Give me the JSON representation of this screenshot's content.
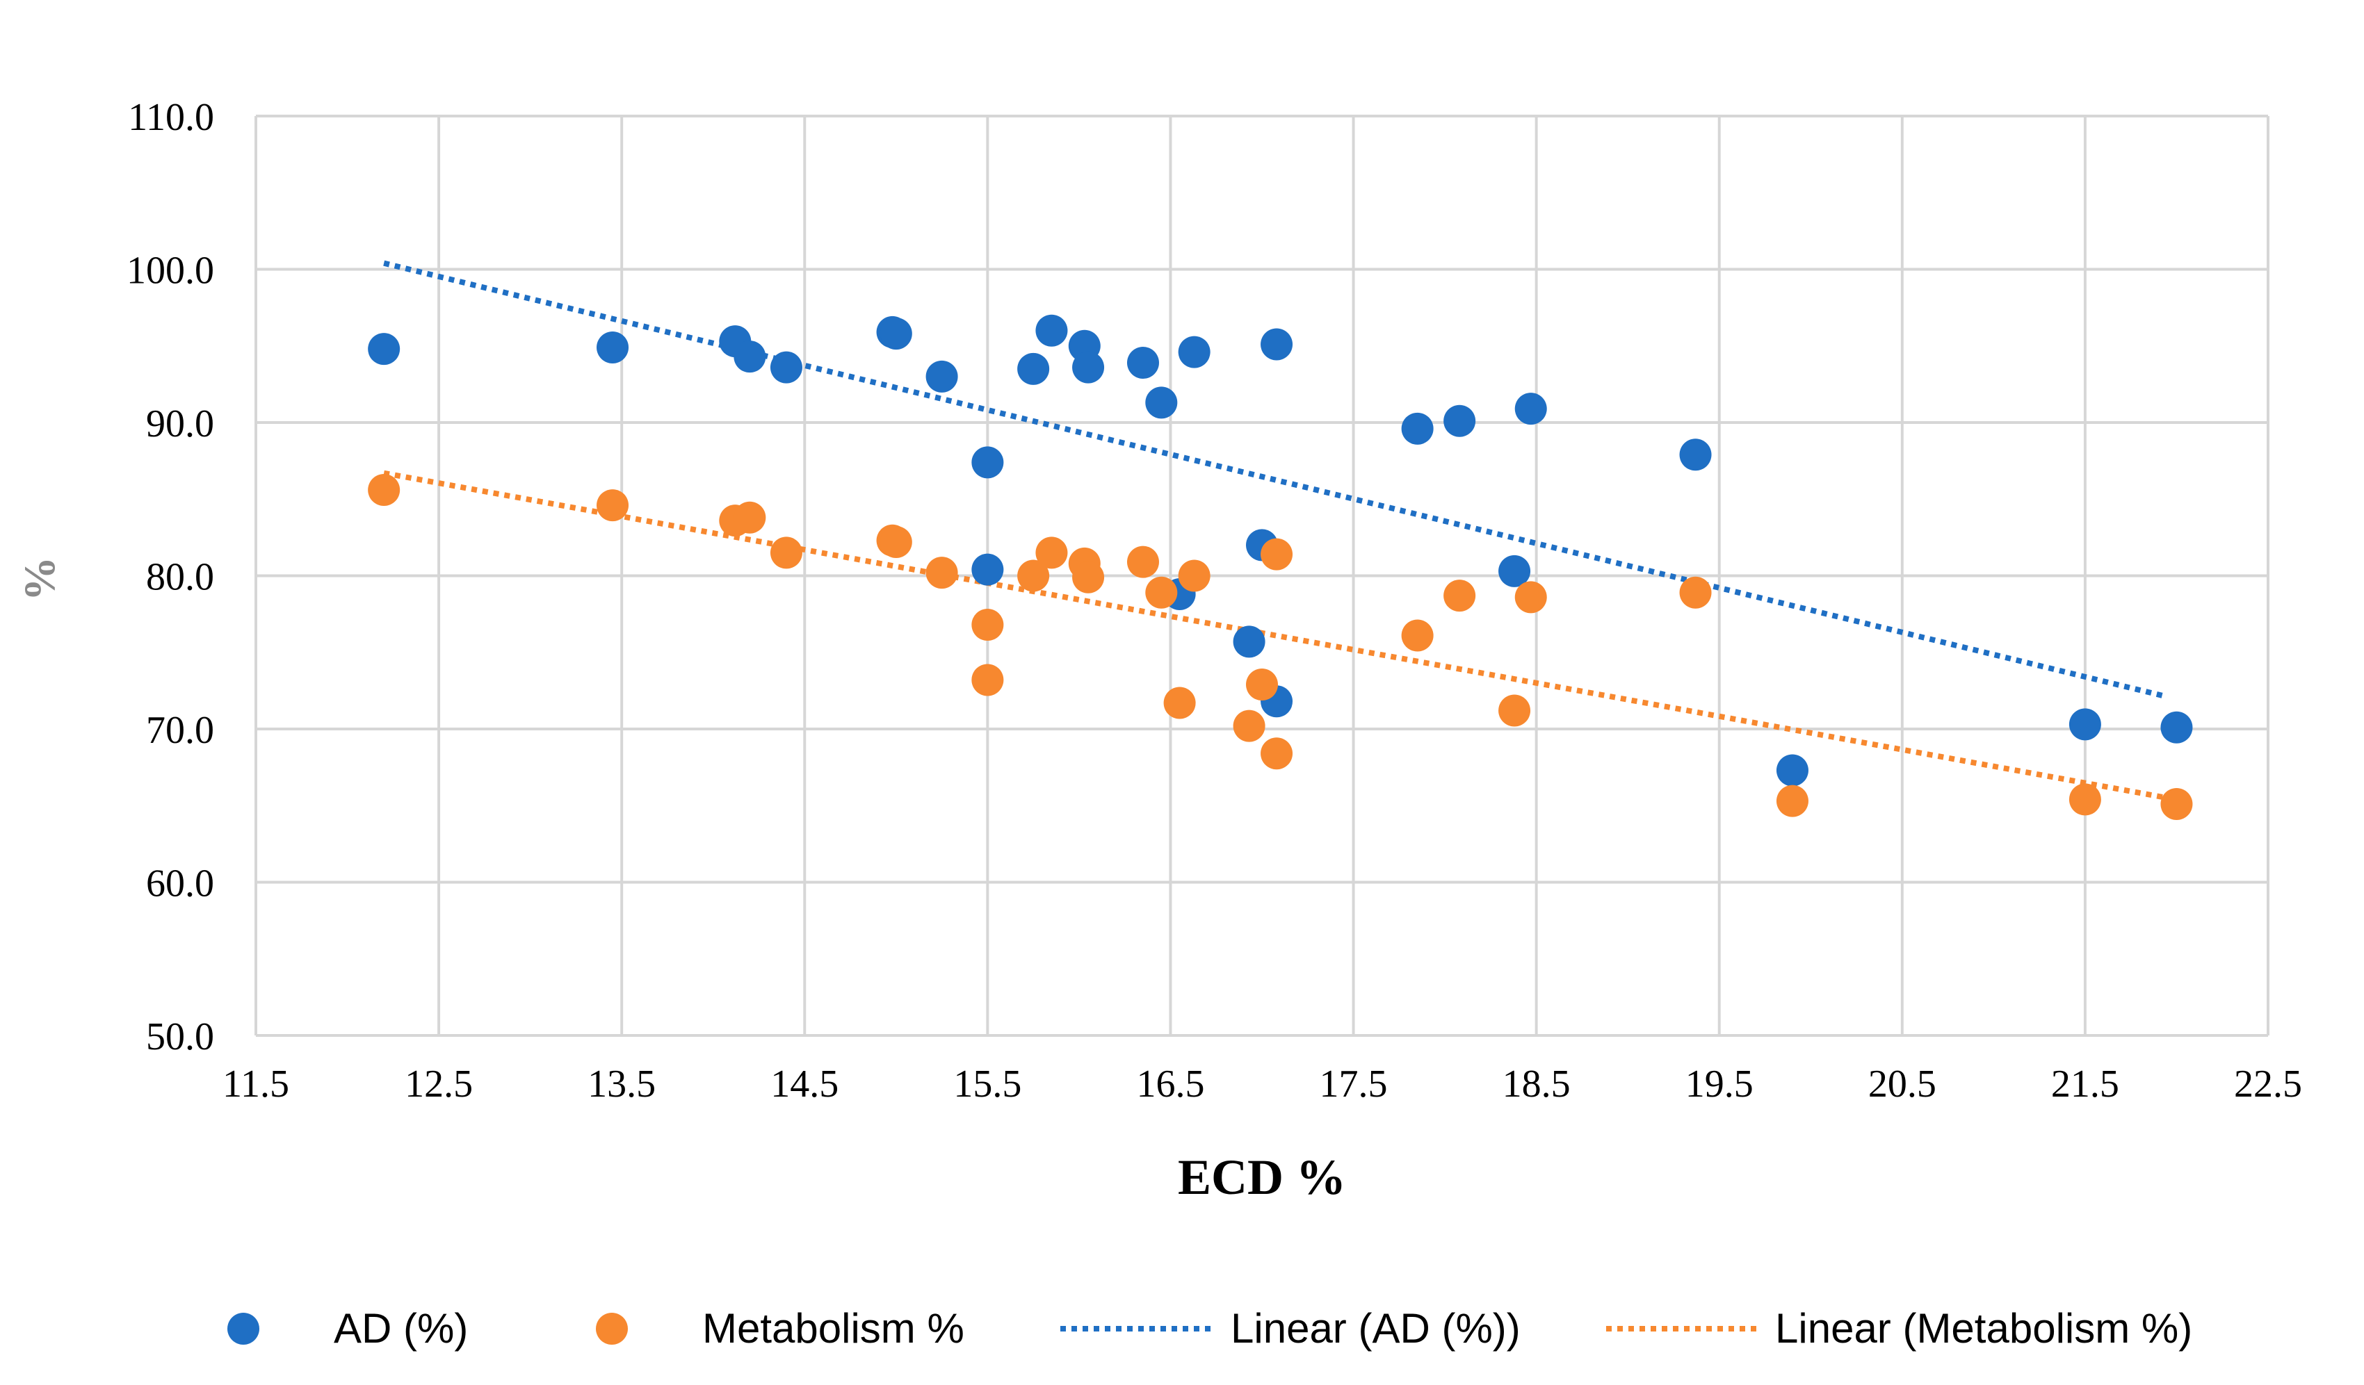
{
  "chart_data": {
    "type": "scatter",
    "title": "",
    "xlabel": "ECD %",
    "ylabel": "%",
    "xlim": [
      11.5,
      22.5
    ],
    "ylim": [
      50,
      110
    ],
    "x_ticks": [
      "11.5",
      "12.5",
      "13.5",
      "14.5",
      "15.5",
      "16.5",
      "17.5",
      "18.5",
      "19.5",
      "20.5",
      "21.5",
      "22.5"
    ],
    "y_ticks": [
      "50.0",
      "60.0",
      "70.0",
      "80.0",
      "90.0",
      "100.0",
      "110.0"
    ],
    "grid": true,
    "legend_position": "bottom",
    "colors": {
      "ad": "#1f6fc4",
      "metabolism": "#f7882f",
      "grid": "#d6d6d6"
    },
    "series": [
      {
        "name": "AD (%)",
        "color": "#1f6fc4",
        "points": [
          [
            12.2,
            94.8
          ],
          [
            13.45,
            94.9
          ],
          [
            14.12,
            95.3
          ],
          [
            14.2,
            94.3
          ],
          [
            14.4,
            93.6
          ],
          [
            14.98,
            95.9
          ],
          [
            15.0,
            95.8
          ],
          [
            15.25,
            93.0
          ],
          [
            15.5,
            87.4
          ],
          [
            15.5,
            80.4
          ],
          [
            15.75,
            93.5
          ],
          [
            15.85,
            96.0
          ],
          [
            16.03,
            95.0
          ],
          [
            16.05,
            93.6
          ],
          [
            16.35,
            93.9
          ],
          [
            16.45,
            91.3
          ],
          [
            16.55,
            78.8
          ],
          [
            16.63,
            94.6
          ],
          [
            16.93,
            75.7
          ],
          [
            17.0,
            82.0
          ],
          [
            17.08,
            95.1
          ],
          [
            17.08,
            71.8
          ],
          [
            17.85,
            89.6
          ],
          [
            18.08,
            90.1
          ],
          [
            18.38,
            80.3
          ],
          [
            18.47,
            90.9
          ],
          [
            19.37,
            87.9
          ],
          [
            19.9,
            67.3
          ],
          [
            21.5,
            70.3
          ],
          [
            22.0,
            70.1
          ]
        ]
      },
      {
        "name": "Metabolism %",
        "color": "#f7882f",
        "points": [
          [
            12.2,
            85.6
          ],
          [
            13.45,
            84.6
          ],
          [
            14.12,
            83.6
          ],
          [
            14.2,
            83.8
          ],
          [
            14.4,
            81.5
          ],
          [
            14.98,
            82.3
          ],
          [
            15.0,
            82.2
          ],
          [
            15.25,
            80.2
          ],
          [
            15.5,
            76.8
          ],
          [
            15.5,
            73.2
          ],
          [
            15.75,
            80.0
          ],
          [
            15.85,
            81.5
          ],
          [
            16.03,
            80.8
          ],
          [
            16.05,
            79.9
          ],
          [
            16.35,
            80.9
          ],
          [
            16.45,
            78.9
          ],
          [
            16.55,
            71.7
          ],
          [
            16.63,
            80.0
          ],
          [
            16.93,
            70.2
          ],
          [
            17.0,
            72.9
          ],
          [
            17.08,
            81.4
          ],
          [
            17.08,
            68.4
          ],
          [
            17.85,
            76.1
          ],
          [
            18.08,
            78.7
          ],
          [
            18.38,
            71.2
          ],
          [
            18.47,
            78.6
          ],
          [
            19.37,
            78.9
          ],
          [
            19.9,
            65.3
          ],
          [
            21.5,
            65.4
          ],
          [
            22.0,
            65.1
          ]
        ]
      }
    ],
    "trendlines": [
      {
        "name": "Linear (AD (%))",
        "color": "#1f6fc4",
        "x": [
          12.2,
          21.95
        ],
        "y": [
          100.4,
          72.1
        ]
      },
      {
        "name": "Linear (Metabolism %)",
        "color": "#f7882f",
        "x": [
          12.2,
          21.95
        ],
        "y": [
          86.7,
          65.5
        ]
      }
    ],
    "legend": [
      "AD (%)",
      "Metabolism %",
      "Linear (AD (%))",
      "Linear (Metabolism %)"
    ]
  }
}
